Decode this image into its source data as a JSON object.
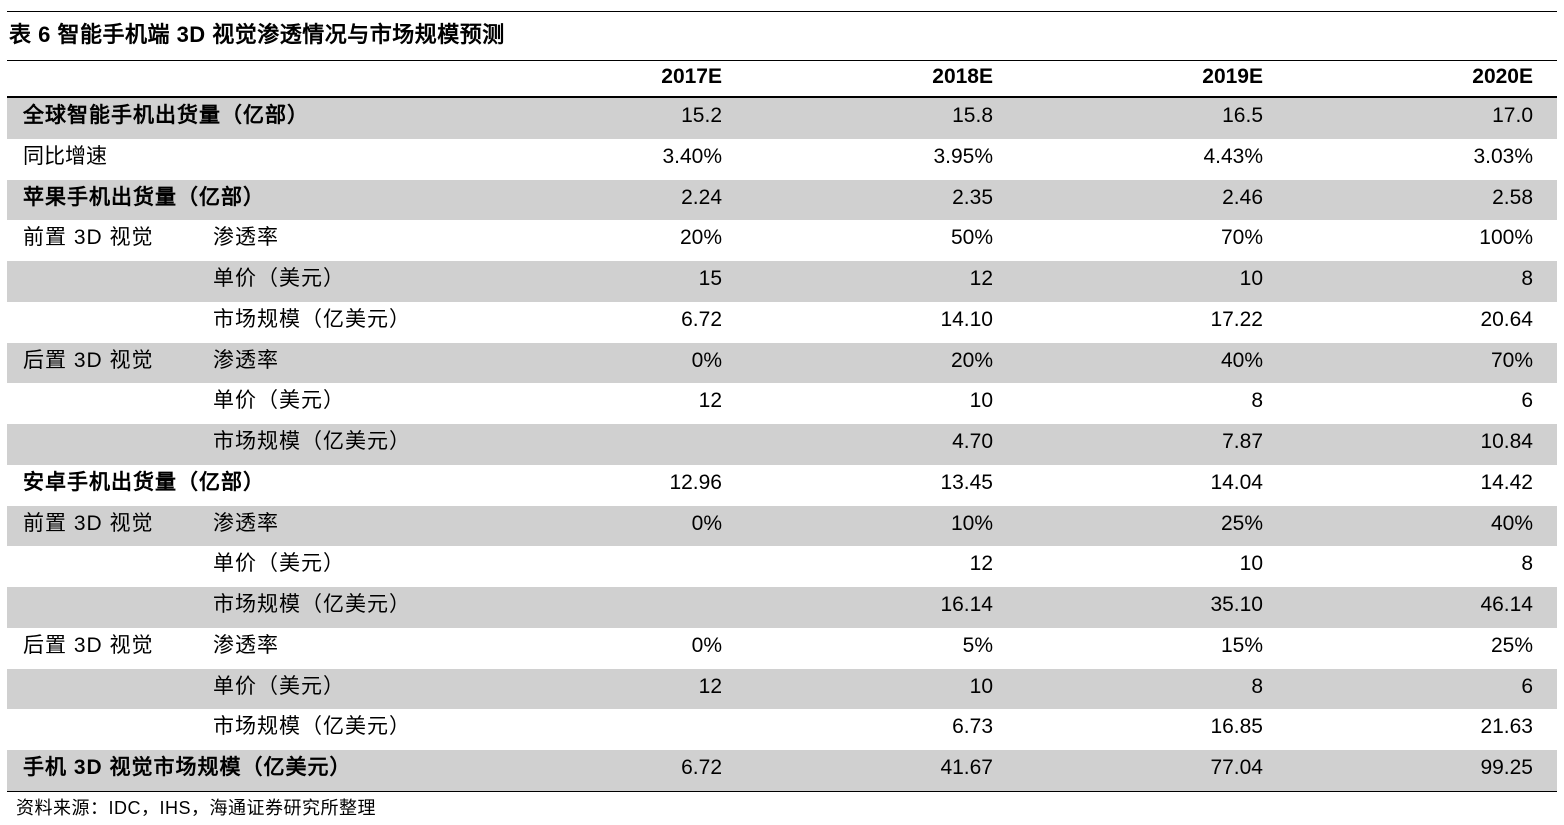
{
  "title": "表 6 智能手机端 3D 视觉渗透情况与市场规模预测",
  "columns": [
    "2017E",
    "2018E",
    "2019E",
    "2020E"
  ],
  "rows": [
    {
      "label": "全球智能手机出货量（亿部）",
      "group": "",
      "sub": "",
      "bold": true,
      "shaded": true,
      "values": [
        "15.2",
        "15.8",
        "16.5",
        "17.0"
      ]
    },
    {
      "label": "同比增速",
      "group": "",
      "sub": "",
      "bold": false,
      "shaded": false,
      "values": [
        "3.40%",
        "3.95%",
        "4.43%",
        "3.03%"
      ]
    },
    {
      "label": "苹果手机出货量（亿部）",
      "group": "",
      "sub": "",
      "bold": true,
      "shaded": true,
      "values": [
        "2.24",
        "2.35",
        "2.46",
        "2.58"
      ]
    },
    {
      "label": "",
      "group": "前置 3D 视觉",
      "sub": "渗透率",
      "bold": false,
      "shaded": false,
      "values": [
        "20%",
        "50%",
        "70%",
        "100%"
      ]
    },
    {
      "label": "",
      "group": "",
      "sub": "单价（美元）",
      "bold": false,
      "shaded": true,
      "values": [
        "15",
        "12",
        "10",
        "8"
      ]
    },
    {
      "label": "",
      "group": "",
      "sub": "市场规模（亿美元）",
      "bold": false,
      "shaded": false,
      "values": [
        "6.72",
        "14.10",
        "17.22",
        "20.64"
      ]
    },
    {
      "label": "",
      "group": "后置 3D 视觉",
      "sub": "渗透率",
      "bold": false,
      "shaded": true,
      "values": [
        "0%",
        "20%",
        "40%",
        "70%"
      ]
    },
    {
      "label": "",
      "group": "",
      "sub": "单价（美元）",
      "bold": false,
      "shaded": false,
      "values": [
        "12",
        "10",
        "8",
        "6"
      ]
    },
    {
      "label": "",
      "group": "",
      "sub": "市场规模（亿美元）",
      "bold": false,
      "shaded": true,
      "values": [
        "",
        "4.70",
        "7.87",
        "10.84"
      ]
    },
    {
      "label": "安卓手机出货量（亿部）",
      "group": "",
      "sub": "",
      "bold": true,
      "shaded": false,
      "values": [
        "12.96",
        "13.45",
        "14.04",
        "14.42"
      ]
    },
    {
      "label": "",
      "group": "前置 3D 视觉",
      "sub": "渗透率",
      "bold": false,
      "shaded": true,
      "values": [
        "0%",
        "10%",
        "25%",
        "40%"
      ]
    },
    {
      "label": "",
      "group": "",
      "sub": "单价（美元）",
      "bold": false,
      "shaded": false,
      "values": [
        "",
        "12",
        "10",
        "8"
      ]
    },
    {
      "label": "",
      "group": "",
      "sub": "市场规模（亿美元）",
      "bold": false,
      "shaded": true,
      "values": [
        "",
        "16.14",
        "35.10",
        "46.14"
      ]
    },
    {
      "label": "",
      "group": "后置 3D 视觉",
      "sub": "渗透率",
      "bold": false,
      "shaded": false,
      "values": [
        "0%",
        "5%",
        "15%",
        "25%"
      ]
    },
    {
      "label": "",
      "group": "",
      "sub": "单价（美元）",
      "bold": false,
      "shaded": true,
      "values": [
        "12",
        "10",
        "8",
        "6"
      ]
    },
    {
      "label": "",
      "group": "",
      "sub": "市场规模（亿美元）",
      "bold": false,
      "shaded": false,
      "values": [
        "",
        "6.73",
        "16.85",
        "21.63"
      ]
    },
    {
      "label": "手机 3D 视觉市场规模（亿美元）",
      "group": "",
      "sub": "",
      "bold": true,
      "shaded": true,
      "values": [
        "6.72",
        "41.67",
        "77.04",
        "99.25"
      ]
    }
  ],
  "source": "资料来源：IDC，IHS，海通证券研究所整理",
  "colors": {
    "shade": "#d0d0d0",
    "rule": "#000000"
  }
}
